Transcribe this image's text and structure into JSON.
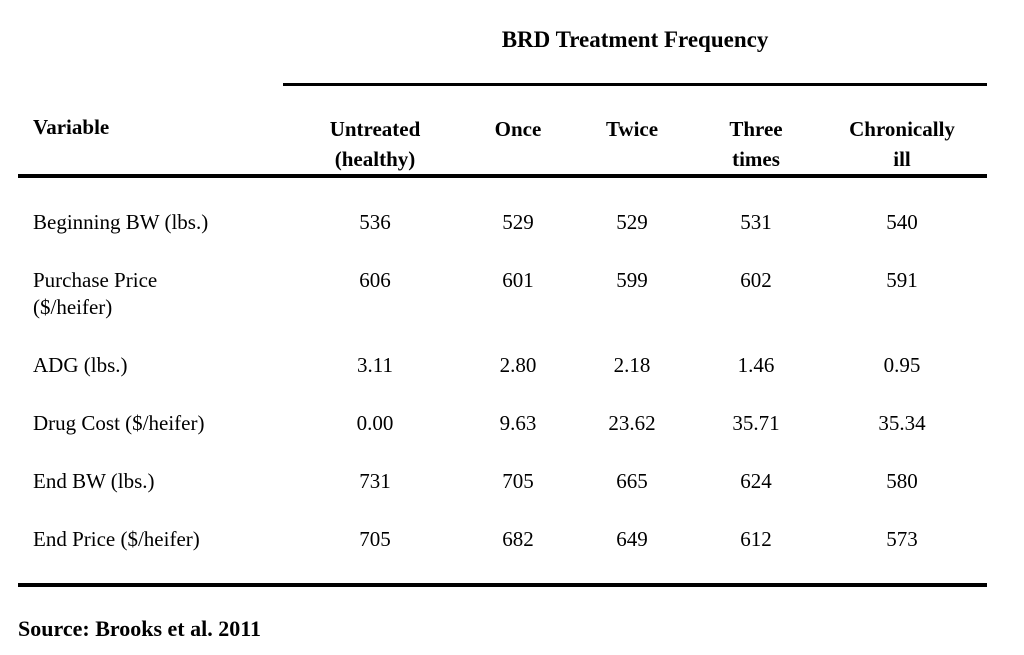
{
  "page": {
    "background": "#ffffff",
    "ink": "#000000"
  },
  "table": {
    "spanner_title": "BRD Treatment Frequency",
    "columns": [
      {
        "label": "Variable",
        "lines": [
          "Variable"
        ]
      },
      {
        "label": "Untreated (healthy)",
        "lines": [
          "Untreated",
          "(healthy)"
        ]
      },
      {
        "label": "Once",
        "lines": [
          "Once"
        ]
      },
      {
        "label": "Twice",
        "lines": [
          "Twice"
        ]
      },
      {
        "label": "Three times",
        "lines": [
          "Three",
          "times"
        ]
      },
      {
        "label": "Chronically ill",
        "lines": [
          "Chronically",
          "ill"
        ]
      }
    ],
    "rows": [
      {
        "label": "Beginning BW (lbs.)",
        "label_lines": [
          "Beginning BW (lbs.)"
        ],
        "values": [
          "536",
          "529",
          "529",
          "531",
          "540"
        ]
      },
      {
        "label": "Purchase Price ($/heifer)",
        "label_lines": [
          "Purchase Price",
          "($/heifer)"
        ],
        "values": [
          "606",
          "601",
          "599",
          "602",
          "591"
        ]
      },
      {
        "label": "ADG (lbs.)",
        "label_lines": [
          "ADG (lbs.)"
        ],
        "values": [
          "3.11",
          "2.80",
          "2.18",
          "1.46",
          "0.95"
        ]
      },
      {
        "label": "Drug Cost ($/heifer)",
        "label_lines": [
          "Drug Cost ($/heifer)"
        ],
        "values": [
          "0.00",
          "9.63",
          "23.62",
          "35.71",
          "35.34"
        ]
      },
      {
        "label": "End BW (lbs.)",
        "label_lines": [
          "End BW (lbs.)"
        ],
        "values": [
          "731",
          "705",
          "665",
          "624",
          "580"
        ]
      },
      {
        "label": "End Price ($/heifer)",
        "label_lines": [
          "End Price ($/heifer)"
        ],
        "values": [
          "705",
          "682",
          "649",
          "612",
          "573"
        ]
      }
    ]
  },
  "source": {
    "text": "Source: Brooks et al. 2011"
  }
}
